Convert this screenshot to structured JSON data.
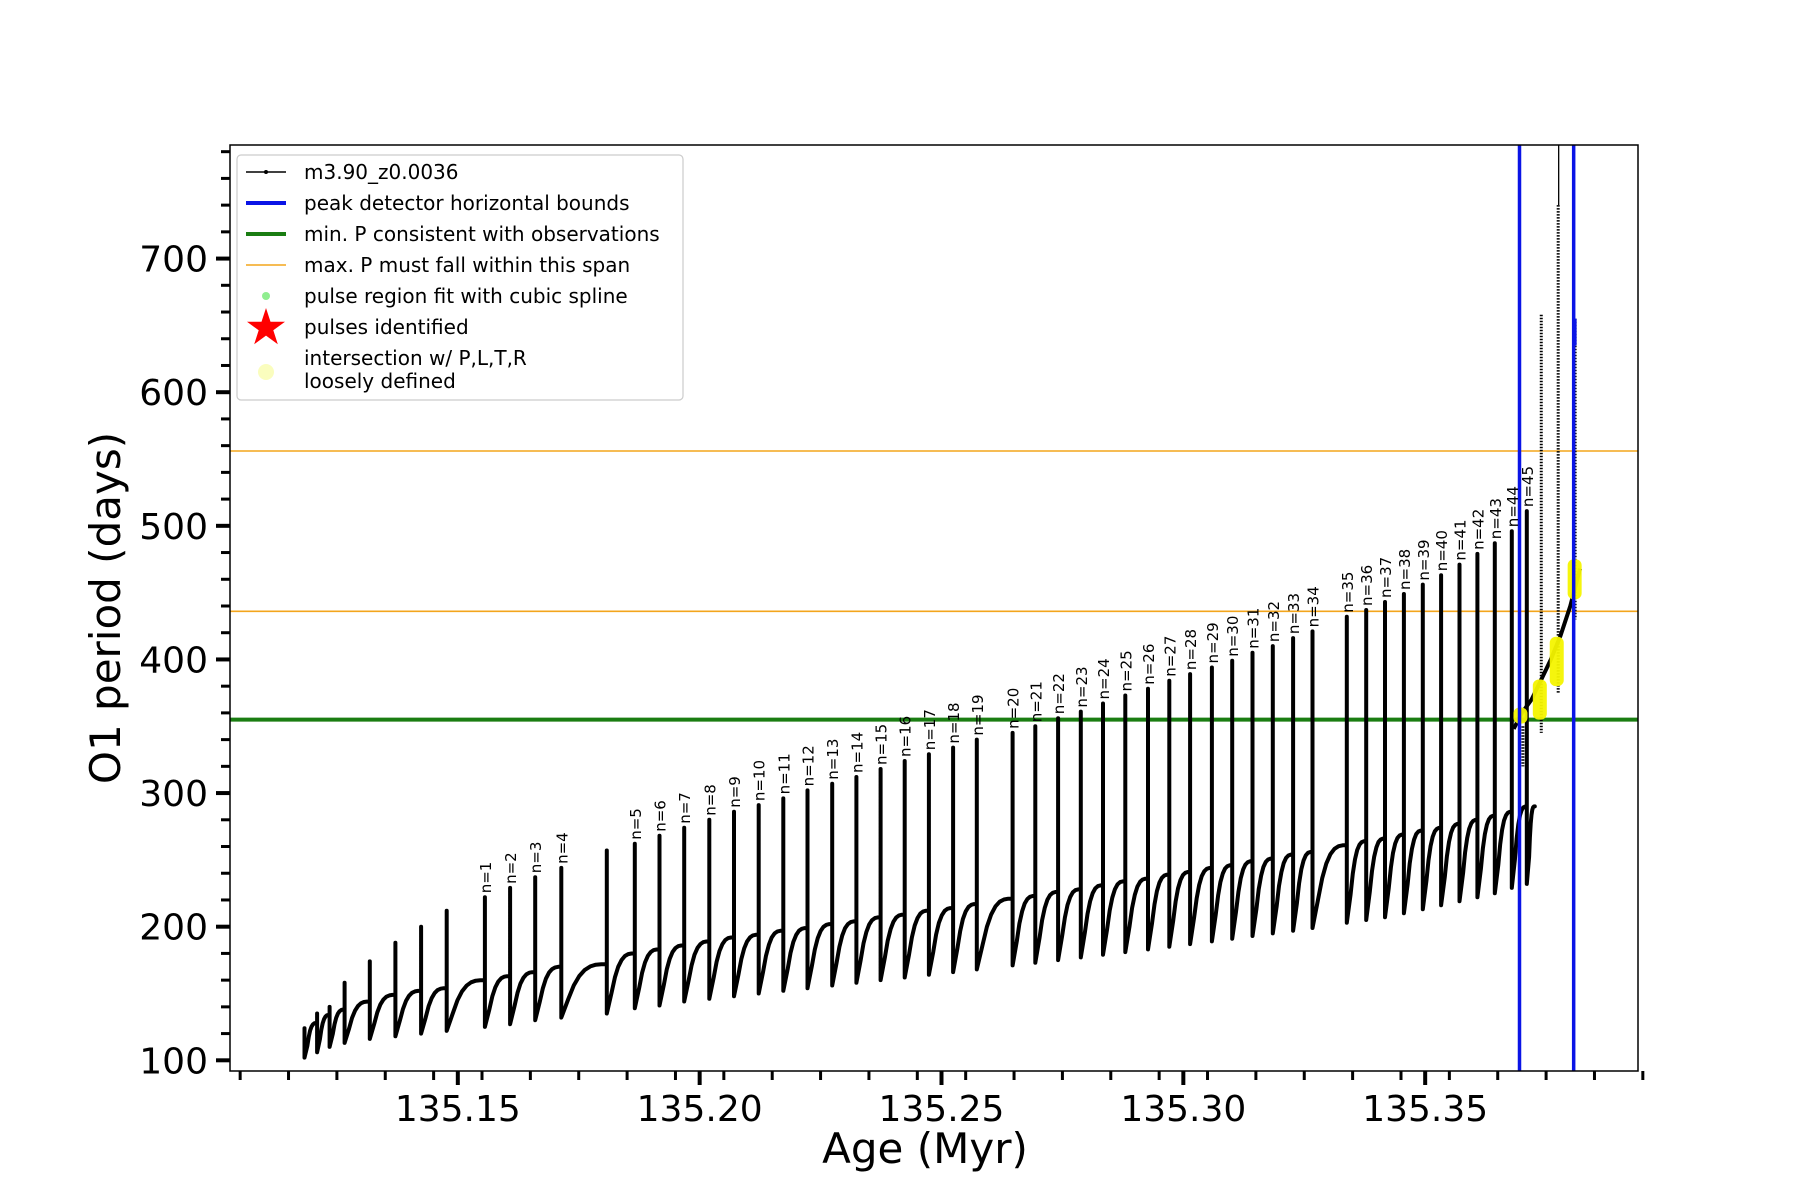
{
  "chart_data": {
    "type": "line",
    "xlabel": "Age (Myr)",
    "ylabel": "O1 period (days)",
    "xlim": [
      135.1029,
      135.394
    ],
    "ylim": [
      92,
      785
    ],
    "xticks": [
      "135.15",
      "135.20",
      "135.25",
      "135.30",
      "135.35"
    ],
    "xtick_values": [
      135.15,
      135.2,
      135.25,
      135.3,
      135.35
    ],
    "yticks": [
      "100",
      "200",
      "300",
      "400",
      "500",
      "600",
      "700"
    ],
    "ytick_values": [
      100,
      200,
      300,
      400,
      500,
      600,
      700
    ],
    "grid": false,
    "legend_placement": "top-left",
    "legend": [
      {
        "label": "m3.90_z0.0036",
        "kind": "line-with-markers",
        "color": "#000000"
      },
      {
        "label": "peak detector horizontal bounds",
        "kind": "thick-line",
        "color": "#0a14e6"
      },
      {
        "label": "min. P consistent with observations",
        "kind": "thick-line",
        "color": "#1a7d12"
      },
      {
        "label": "max. P must fall within this span",
        "kind": "thin-line",
        "color": "#f3a51c"
      },
      {
        "label": "pulse region fit with cubic spline",
        "kind": "dot",
        "color": "#90ee90"
      },
      {
        "label": "pulses identified",
        "kind": "star",
        "color": "#ff0000"
      },
      {
        "label": "intersection w/ P,L,T,R",
        "label2": "loosely defined",
        "kind": "dot-large",
        "color": "#fafdbe"
      }
    ],
    "hlines": [
      {
        "name": "min. P consistent with observations",
        "y": 355,
        "color": "#1a7d12"
      },
      {
        "name": "max. P must fall within this span",
        "y": 436,
        "color": "#f3a51c"
      },
      {
        "name": "max. P must fall within this span",
        "y": 556,
        "color": "#f3a51c"
      }
    ],
    "vlines": [
      {
        "name": "peak detector horizontal bounds",
        "x": 135.3695,
        "color": "#0a14e6"
      },
      {
        "name": "peak detector horizontal bounds",
        "x": 135.3807,
        "color": "#0a14e6"
      }
    ],
    "pulses": {
      "n": [
        1,
        2,
        3,
        4,
        5,
        6,
        7,
        8,
        9,
        10,
        11,
        12,
        13,
        14,
        15,
        16,
        17,
        18,
        19,
        20,
        21,
        22,
        23,
        24,
        25,
        26,
        27,
        28,
        29,
        30,
        31,
        32,
        33,
        34,
        35,
        36,
        37,
        38,
        39,
        40,
        41,
        42,
        43,
        44,
        45
      ],
      "labels": [
        "n=1",
        "n=2",
        "n=3",
        "n=4",
        "n=5",
        "n=6",
        "n=7",
        "n=8",
        "n=9",
        "n=10",
        "n=11",
        "n=12",
        "n=13",
        "n=14",
        "n=15",
        "n=16",
        "n=17",
        "n=18",
        "n=19",
        "n=20",
        "n=21",
        "n=22",
        "n=23",
        "n=24",
        "n=25",
        "n=26",
        "n=27",
        "n=28",
        "n=29",
        "n=30",
        "n=31",
        "n=32",
        "n=33",
        "n=34",
        "n=35",
        "n=36",
        "n=37",
        "n=38",
        "n=39",
        "n=40",
        "n=41",
        "n=42",
        "n=43",
        "n=44",
        "n=45"
      ],
      "age": [
        135.1556,
        135.1608,
        135.166,
        135.1714,
        135.1866,
        135.1917,
        135.1968,
        135.202,
        135.2071,
        135.2122,
        135.2173,
        135.2223,
        135.2274,
        135.2324,
        135.2374,
        135.2424,
        135.2474,
        135.2524,
        135.2573,
        135.2647,
        135.2694,
        135.2741,
        135.2788,
        135.2834,
        135.288,
        135.2927,
        135.2971,
        135.3014,
        135.3059,
        135.3101,
        135.3143,
        135.3185,
        135.3227,
        135.3267,
        135.3338,
        135.3378,
        135.3417,
        135.3456,
        135.3495,
        135.3533,
        135.3571,
        135.3608,
        135.3644,
        135.3679,
        135.371
      ],
      "peak_period": [
        222,
        229,
        237,
        244,
        262,
        268,
        274,
        280,
        286,
        291,
        296,
        302,
        307,
        312,
        318,
        324,
        329,
        334,
        340,
        345,
        350,
        356,
        361,
        367,
        373,
        378,
        384,
        389,
        394,
        399,
        405,
        410,
        416,
        421,
        432,
        437,
        443,
        449,
        456,
        463,
        471,
        479,
        487,
        496,
        511
      ],
      "base_period": [
        160,
        163,
        166,
        170,
        180,
        183,
        186,
        189,
        192,
        194,
        197,
        199,
        202,
        204,
        207,
        209,
        212,
        214,
        217,
        221,
        223,
        226,
        228,
        231,
        234,
        236,
        239,
        241,
        244,
        246,
        249,
        251,
        254,
        256,
        261,
        264,
        266,
        269,
        272,
        274,
        277,
        280,
        283,
        286,
        290
      ],
      "trough_period": [
        125,
        127,
        130,
        132,
        139,
        141,
        144,
        146,
        148,
        150,
        152,
        154,
        156,
        158,
        160,
        162,
        164,
        166,
        168,
        171,
        173,
        175,
        177,
        179,
        181,
        183,
        185,
        187,
        189,
        191,
        193,
        195,
        197,
        199,
        203,
        205,
        207,
        210,
        213,
        216,
        219,
        222,
        225,
        229,
        232
      ]
    },
    "early_flashes": {
      "age": [
        135.1183,
        135.1209,
        135.1235,
        135.1266,
        135.1318,
        135.1371,
        135.1424,
        135.1477,
        135.1808
      ],
      "peak_period": [
        124,
        135,
        140,
        158,
        174,
        188,
        200,
        212,
        257
      ],
      "base_period": [
        116,
        128,
        134,
        138,
        144,
        149,
        152,
        154,
        172
      ],
      "trough_period": [
        102,
        106,
        110,
        113,
        116,
        118,
        120,
        122,
        135
      ]
    },
    "late_curve": {
      "age": [
        135.3683,
        135.37,
        135.372,
        135.374,
        135.376,
        135.378,
        135.38,
        135.382
      ],
      "period": [
        348,
        360,
        370,
        385,
        400,
        418,
        440,
        468
      ],
      "spikes": [
        {
          "age": 135.3702,
          "low": 320,
          "high": 350
        },
        {
          "age": 135.374,
          "low": 345,
          "high": 658
        },
        {
          "age": 135.3775,
          "low": 375,
          "high": 740
        },
        {
          "age": 135.381,
          "low": 430,
          "high": 655
        }
      ]
    },
    "intersection_regions": [
      {
        "age": 135.3697,
        "low": 352,
        "high": 364
      },
      {
        "age": 135.3737,
        "low": 355,
        "high": 385
      },
      {
        "age": 135.3772,
        "low": 380,
        "high": 417
      },
      {
        "age": 135.3809,
        "low": 445,
        "high": 475
      }
    ]
  }
}
